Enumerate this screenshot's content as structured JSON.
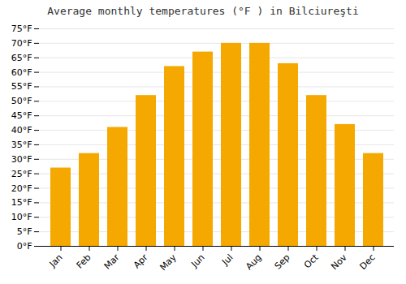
{
  "chart_data": {
    "type": "bar",
    "title": "Average monthly temperatures (°F ) in Bilciureşti",
    "categories": [
      "Jan",
      "Feb",
      "Mar",
      "Apr",
      "May",
      "Jun",
      "Jul",
      "Aug",
      "Sep",
      "Oct",
      "Nov",
      "Dec"
    ],
    "values": [
      27,
      32,
      41,
      52,
      62,
      67,
      70,
      70,
      63,
      52,
      42,
      32
    ],
    "color": "#F5A800",
    "ylim": [
      0,
      75
    ],
    "yticks": [
      {
        "value": 0,
        "label": "0°F"
      },
      {
        "value": 5,
        "label": "5°F"
      },
      {
        "value": 10,
        "label": "10°F"
      },
      {
        "value": 15,
        "label": "15°F"
      },
      {
        "value": 20,
        "label": "20°F"
      },
      {
        "value": 25,
        "label": "25°F"
      },
      {
        "value": 30,
        "label": "30°F"
      },
      {
        "value": 35,
        "label": "35°F"
      },
      {
        "value": 40,
        "label": "40°F"
      },
      {
        "value": 45,
        "label": "45°F"
      },
      {
        "value": 50,
        "label": "50°F"
      },
      {
        "value": 55,
        "label": "55°F"
      },
      {
        "value": 60,
        "label": "60°F"
      },
      {
        "value": 65,
        "label": "65°F"
      },
      {
        "value": 70,
        "label": "70°F"
      },
      {
        "value": 75,
        "label": "75°F"
      }
    ],
    "grid": true
  }
}
